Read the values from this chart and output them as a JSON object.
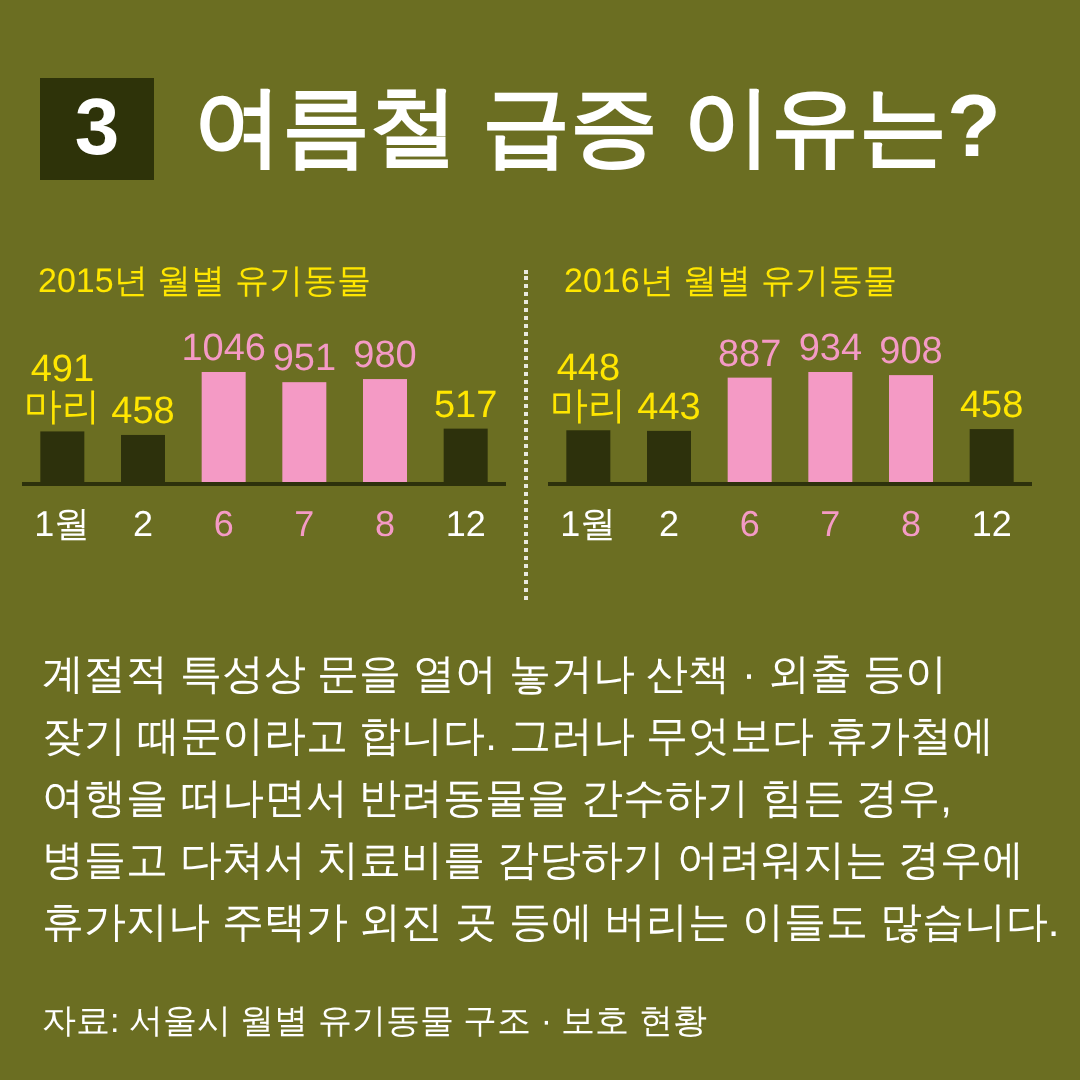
{
  "chart_data": [
    {
      "type": "other",
      "title": "여름철 급증 이유는?",
      "annotations": [
        "3"
      ]
    },
    {
      "type": "bar",
      "title": "2015년 월별 유기동물",
      "categories": [
        "1월",
        "2",
        "6",
        "7",
        "8",
        "12"
      ],
      "values": [
        491,
        458,
        1046,
        951,
        980,
        517
      ],
      "colors": [
        "#2d310c",
        "#2d310c",
        "#f49ac5",
        "#f49ac5",
        "#f49ac5",
        "#2d310c"
      ],
      "value_labels": [
        "491\n마리",
        "458",
        "1046",
        "951",
        "980",
        "517"
      ]
    },
    {
      "type": "bar",
      "title": "2016년 월별 유기동물",
      "categories": [
        "1월",
        "2",
        "6",
        "7",
        "8",
        "12"
      ],
      "values": [
        448,
        443,
        887,
        934,
        908,
        458
      ],
      "colors": [
        "#2d310c",
        "#2d310c",
        "#f49ac5",
        "#f49ac5",
        "#f49ac5",
        "#2d310c"
      ],
      "value_labels": [
        "448\n마리",
        "443",
        "887",
        "934",
        "908",
        "458"
      ]
    },
    {
      "type": "other",
      "annotations": [
        "계절적 특성상 문을 열어 놓거나 산책 · 외출 등이\n잦기 때문이라고 합니다. 그러나 무엇보다 휴가철에\n여행을 떠나면서 반려동물을 간수하기 힘든 경우,\n병들고 다쳐서 치료비를 감당하기 어려워지는 경우에\n휴가지나 주택가 외진 곳 등에 버리는 이들도 많습니다.",
        "자료: 서울시 월별 유기동물 구조 · 보호 현황"
      ]
    }
  ]
}
